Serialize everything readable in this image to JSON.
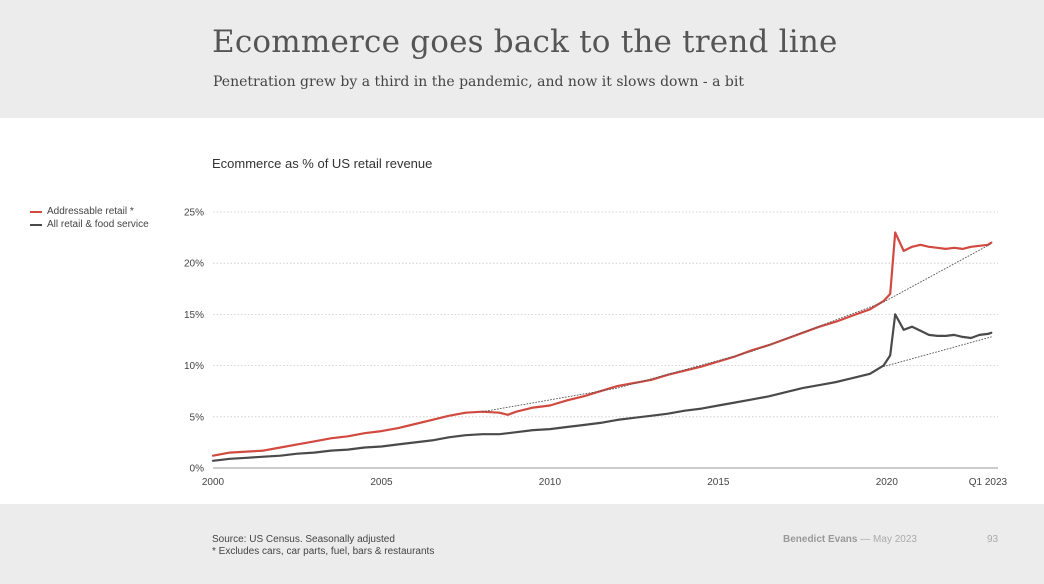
{
  "header": {
    "title": "Ecommerce goes back to the trend line",
    "subtitle": "Penetration grew by a third in the pandemic, and now it slows down - a bit"
  },
  "chart_data": {
    "type": "line",
    "title": "Ecommerce as % of US retail revenue",
    "xlabel": "",
    "ylabel": "",
    "xlim": [
      2000,
      2023.3
    ],
    "ylim": [
      0,
      25
    ],
    "x_ticks": [
      {
        "value": 2000,
        "label": "2000"
      },
      {
        "value": 2005,
        "label": "2005"
      },
      {
        "value": 2010,
        "label": "2010"
      },
      {
        "value": 2015,
        "label": "2015"
      },
      {
        "value": 2020,
        "label": "2020"
      },
      {
        "value": 2023.0,
        "label": "Q1 2023"
      }
    ],
    "y_ticks": [
      {
        "value": 0,
        "label": "0%"
      },
      {
        "value": 5,
        "label": "5%"
      },
      {
        "value": 10,
        "label": "10%"
      },
      {
        "value": 15,
        "label": "15%"
      },
      {
        "value": 20,
        "label": "20%"
      },
      {
        "value": 25,
        "label": "25%"
      }
    ],
    "grid": true,
    "legend_position": "left",
    "series": [
      {
        "name": "Addressable retail *",
        "color": "#d1493f",
        "x": [
          2000.0,
          2000.5,
          2001.0,
          2001.5,
          2002.0,
          2002.5,
          2003.0,
          2003.5,
          2004.0,
          2004.5,
          2005.0,
          2005.5,
          2006.0,
          2006.5,
          2007.0,
          2007.5,
          2008.0,
          2008.5,
          2008.75,
          2009.0,
          2009.5,
          2010.0,
          2010.5,
          2011.0,
          2011.5,
          2012.0,
          2012.5,
          2013.0,
          2013.5,
          2014.0,
          2014.5,
          2015.0,
          2015.5,
          2016.0,
          2016.5,
          2017.0,
          2017.5,
          2018.0,
          2018.5,
          2019.0,
          2019.5,
          2019.9,
          2020.1,
          2020.25,
          2020.5,
          2020.75,
          2021.0,
          2021.25,
          2021.5,
          2021.75,
          2022.0,
          2022.25,
          2022.5,
          2022.75,
          2023.0,
          2023.1
        ],
        "values": [
          1.2,
          1.5,
          1.6,
          1.7,
          2.0,
          2.3,
          2.6,
          2.9,
          3.1,
          3.4,
          3.6,
          3.9,
          4.3,
          4.7,
          5.1,
          5.4,
          5.5,
          5.4,
          5.2,
          5.5,
          5.9,
          6.1,
          6.6,
          7.0,
          7.5,
          8.0,
          8.3,
          8.6,
          9.1,
          9.5,
          9.9,
          10.4,
          10.9,
          11.5,
          12.0,
          12.6,
          13.2,
          13.8,
          14.3,
          14.9,
          15.5,
          16.3,
          17.0,
          23.0,
          21.2,
          21.6,
          21.8,
          21.6,
          21.5,
          21.4,
          21.5,
          21.4,
          21.6,
          21.7,
          21.8,
          22.0
        ]
      },
      {
        "name": "All retail & food service",
        "color": "#4a4a4a",
        "x": [
          2000.0,
          2000.5,
          2001.0,
          2001.5,
          2002.0,
          2002.5,
          2003.0,
          2003.5,
          2004.0,
          2004.5,
          2005.0,
          2005.5,
          2006.0,
          2006.5,
          2007.0,
          2007.5,
          2008.0,
          2008.5,
          2009.0,
          2009.5,
          2010.0,
          2010.5,
          2011.0,
          2011.5,
          2012.0,
          2012.5,
          2013.0,
          2013.5,
          2014.0,
          2014.5,
          2015.0,
          2015.5,
          2016.0,
          2016.5,
          2017.0,
          2017.5,
          2018.0,
          2018.5,
          2019.0,
          2019.5,
          2019.9,
          2020.1,
          2020.25,
          2020.5,
          2020.75,
          2021.0,
          2021.25,
          2021.5,
          2021.75,
          2022.0,
          2022.25,
          2022.5,
          2022.75,
          2023.0,
          2023.1
        ],
        "values": [
          0.7,
          0.9,
          1.0,
          1.1,
          1.2,
          1.4,
          1.5,
          1.7,
          1.8,
          2.0,
          2.1,
          2.3,
          2.5,
          2.7,
          3.0,
          3.2,
          3.3,
          3.3,
          3.5,
          3.7,
          3.8,
          4.0,
          4.2,
          4.4,
          4.7,
          4.9,
          5.1,
          5.3,
          5.6,
          5.8,
          6.1,
          6.4,
          6.7,
          7.0,
          7.4,
          7.8,
          8.1,
          8.4,
          8.8,
          9.2,
          10.0,
          11.0,
          15.0,
          13.5,
          13.8,
          13.4,
          13.0,
          12.9,
          12.9,
          13.0,
          12.8,
          12.7,
          13.0,
          13.1,
          13.2
        ]
      },
      {
        "name": "",
        "style": "dotted",
        "color": "#555555",
        "x": [
          2008.0,
          2012.0,
          2016.0,
          2019.9,
          2023.1
        ],
        "values": [
          5.5,
          7.8,
          11.4,
          16.2,
          21.9
        ]
      },
      {
        "name": "",
        "style": "dotted",
        "color": "#555555",
        "x": [
          2019.9,
          2023.1
        ],
        "values": [
          9.9,
          12.8
        ]
      }
    ]
  },
  "legend": [
    {
      "label": "Addressable retail *",
      "color": "#d1493f"
    },
    {
      "label": "All retail & food service",
      "color": "#4a4a4a"
    }
  ],
  "footer": {
    "source_line1": "Source: US Census. Seasonally adjusted",
    "source_line2": "* Excludes cars, car parts, fuel, bars & restaurants",
    "author": "Benedict Evans",
    "separator": "—",
    "date": "May 2023",
    "page": "93"
  }
}
